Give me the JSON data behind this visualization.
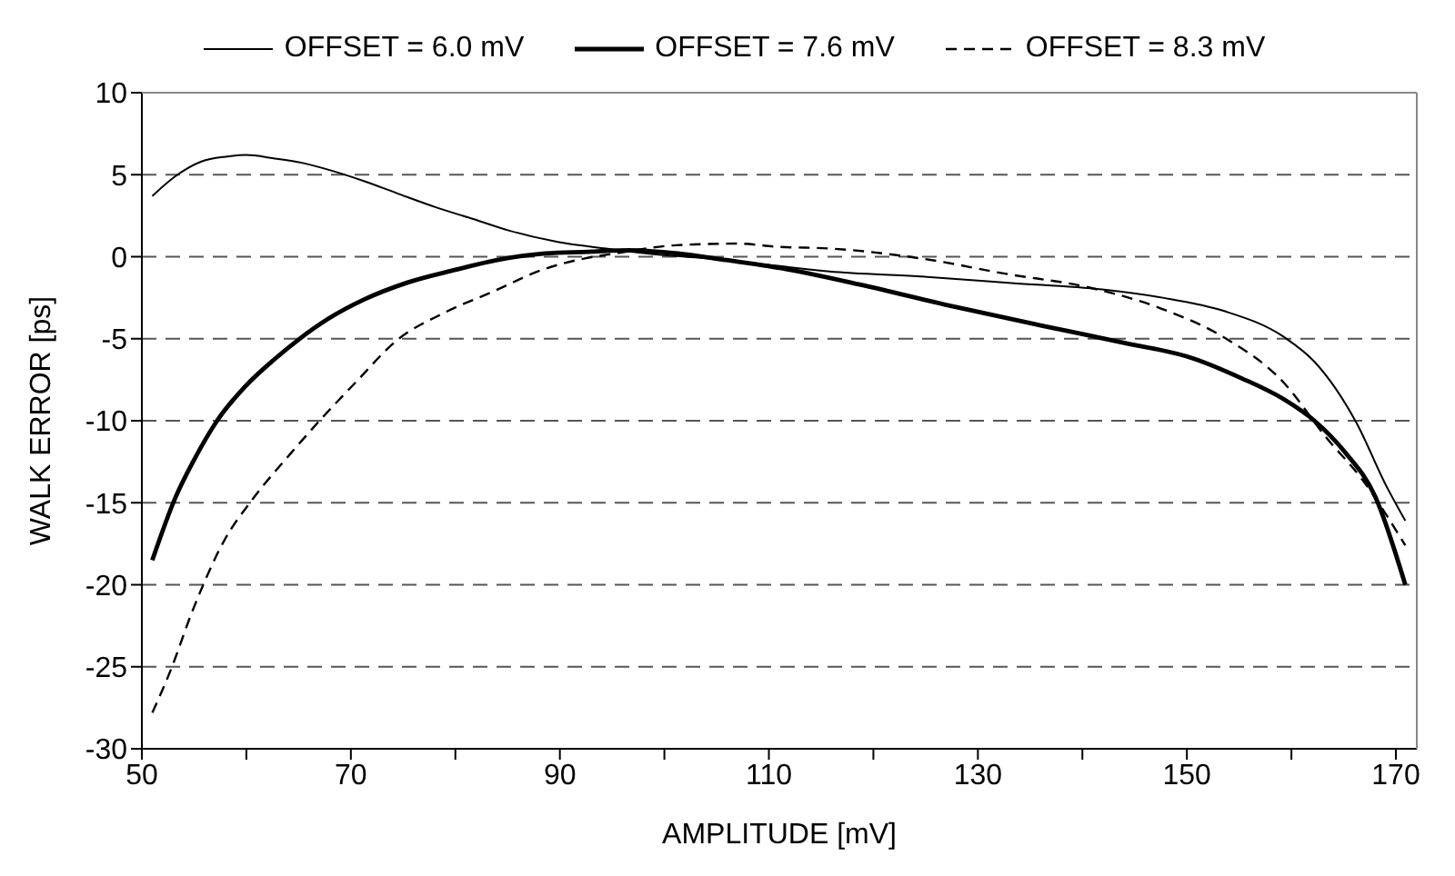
{
  "chart_data": {
    "type": "line",
    "xlabel": "AMPLITUDE [mV]",
    "ylabel": "WALK ERROR [ps]",
    "xlim": [
      50,
      172
    ],
    "xticks": [
      50,
      {
        "value": 60,
        "label": null
      },
      70,
      {
        "value": 80,
        "label": null
      },
      90,
      {
        "value": 100,
        "label": null
      },
      110,
      {
        "value": 120,
        "label": null
      },
      130,
      {
        "value": 140,
        "label": null
      },
      150,
      {
        "value": 160,
        "label": null
      },
      170
    ],
    "ylim": [
      -30,
      10
    ],
    "yticks": [
      -30,
      -25,
      -20,
      -15,
      -10,
      -5,
      0,
      5,
      10
    ],
    "grid": "y",
    "legend": "top",
    "marker": "none",
    "series": [
      {
        "name": "OFFSET = 6.0 mV",
        "color": "#000000",
        "line_style": "solid",
        "x": [
          51,
          53.2,
          55.7,
          58,
          60,
          62.6,
          65.5,
          68.4,
          71.3,
          74.7,
          78.2,
          81.7,
          85.1,
          89.8,
          94.4,
          98.4,
          104,
          110,
          115.8,
          124.5,
          133.2,
          141.9,
          147.7,
          153.5,
          159.3,
          162.2,
          166.2,
          169.1,
          170.9
        ],
        "values": [
          3.7,
          4.9,
          5.8,
          6.1,
          6.2,
          6.0,
          5.7,
          5.2,
          4.6,
          3.8,
          3.0,
          2.3,
          1.6,
          0.9,
          0.5,
          0.2,
          -0.1,
          -0.5,
          -0.9,
          -1.2,
          -1.6,
          -2.0,
          -2.5,
          -3.3,
          -4.9,
          -6.4,
          -10.1,
          -14.0,
          -16.1
        ]
      },
      {
        "name": "OFFSET = 7.6 mV",
        "color": "#000000",
        "line_style": "solid",
        "x": [
          51,
          53.2,
          54.9,
          57.2,
          59.9,
          62.6,
          64.9,
          67.8,
          71.3,
          75.3,
          80,
          84,
          88.6,
          92.7,
          96.7,
          101.3,
          105.9,
          111.2,
          118.7,
          127.4,
          136.1,
          143.6,
          150.6,
          155.2,
          159.3,
          162.2,
          165.1,
          168,
          170.9
        ],
        "values": [
          -18.5,
          -14.7,
          -12.5,
          -10.0,
          -7.9,
          -6.3,
          -5.1,
          -3.8,
          -2.6,
          -1.6,
          -0.8,
          -0.2,
          0.2,
          0.3,
          0.4,
          0.2,
          -0.2,
          -0.7,
          -1.7,
          -3.0,
          -4.2,
          -5.2,
          -6.2,
          -7.4,
          -8.7,
          -10.0,
          -11.9,
          -14.6,
          -20.0
        ]
      },
      {
        "name": "OFFSET = 8.3 mV",
        "color": "#000000",
        "line_style": "dashed",
        "x": [
          51,
          52.7,
          54.9,
          57.8,
          60.7,
          64.1,
          67,
          70.4,
          74.4,
          79,
          83.7,
          88.3,
          92.4,
          95.3,
          101.1,
          106.9,
          111,
          115.8,
          124.5,
          133.2,
          140.1,
          147.7,
          153.5,
          159.3,
          163.3,
          166.8,
          170.9
        ],
        "values": [
          -27.8,
          -25.3,
          -21.5,
          -17.4,
          -14.7,
          -12.1,
          -10.0,
          -7.7,
          -5.1,
          -3.4,
          -2.1,
          -0.8,
          -0.1,
          0.2,
          0.7,
          0.8,
          0.6,
          0.5,
          -0.1,
          -1.1,
          -1.8,
          -3.2,
          -4.9,
          -7.7,
          -11.0,
          -13.6,
          -17.6
        ]
      }
    ]
  }
}
